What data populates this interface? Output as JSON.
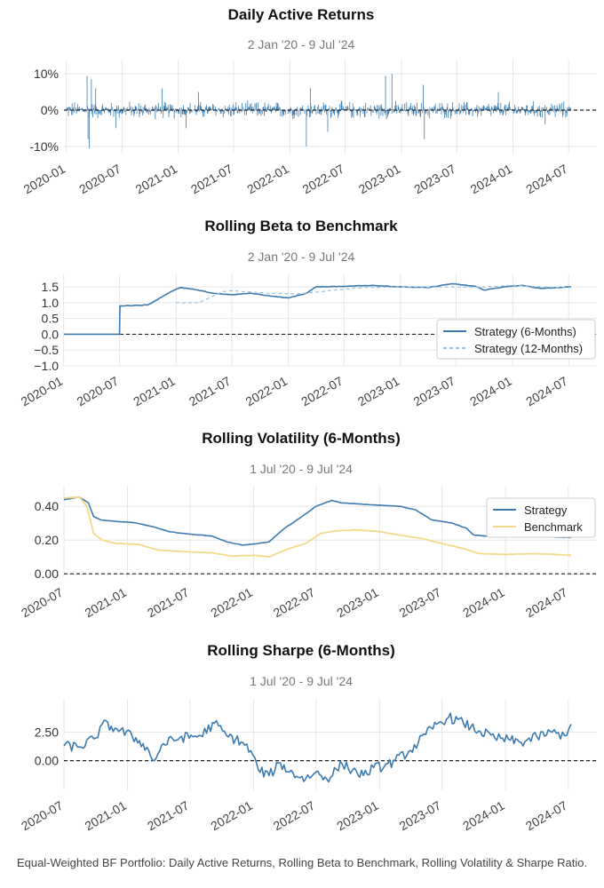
{
  "caption": "Equal-Weighted BF Portfolio: Daily Active Returns, Rolling Beta to Benchmark, Rolling Volatility & Sharpe Ratio.",
  "colors": {
    "strategy": "#3b7bb0",
    "strategy_light": "#9dc0dd",
    "benchmark": "#f2d98a",
    "grid": "#e6e6e6",
    "zero_line": "#222222"
  },
  "chart_data": [
    {
      "type": "bar",
      "title": "Daily Active Returns",
      "subtitle": "2 Jan '20 -  9 Jul '24",
      "x_range": [
        "2020-01-02",
        "2024-07-09"
      ],
      "ylim": [
        -0.12,
        0.12
      ],
      "yticks": [
        {
          "v": 0.1,
          "label": "10%"
        },
        {
          "v": 0.0,
          "label": "0%"
        },
        {
          "v": -0.1,
          "label": "-10%"
        }
      ],
      "xticks": [
        "2020-01",
        "2020-07",
        "2021-01",
        "2021-07",
        "2022-01",
        "2022-07",
        "2023-01",
        "2023-07",
        "2024-01",
        "2024-07"
      ],
      "series": [
        {
          "values_note": "approx. daily active returns, sampled",
          "spikes": [
            {
              "date": "2020-03-09",
              "value": 0.095
            },
            {
              "date": "2020-03-16",
              "value": -0.105
            },
            {
              "date": "2020-03-23",
              "value": 0.085
            },
            {
              "date": "2020-03-12",
              "value": -0.08
            },
            {
              "date": "2020-04-06",
              "value": 0.06
            },
            {
              "date": "2020-06-11",
              "value": -0.05
            },
            {
              "date": "2020-11-09",
              "value": 0.06
            },
            {
              "date": "2021-01-27",
              "value": -0.05
            },
            {
              "date": "2021-03-08",
              "value": 0.05
            },
            {
              "date": "2022-02-24",
              "value": -0.1
            },
            {
              "date": "2022-03-09",
              "value": 0.06
            },
            {
              "date": "2022-05-05",
              "value": -0.06
            },
            {
              "date": "2022-11-10",
              "value": 0.095
            },
            {
              "date": "2022-12-01",
              "value": 0.1
            },
            {
              "date": "2023-03-13",
              "value": 0.07
            },
            {
              "date": "2023-03-17",
              "value": -0.08
            },
            {
              "date": "2023-11-14",
              "value": 0.05
            },
            {
              "date": "2024-04-15",
              "value": -0.04
            }
          ],
          "typical_amplitude": 0.02
        }
      ]
    },
    {
      "type": "line",
      "title": "Rolling Beta to Benchmark",
      "subtitle": "2 Jan '20 -  9 Jul '24",
      "x_range": [
        "2020-01-02",
        "2024-07-09"
      ],
      "ylim": [
        -1.0,
        1.7
      ],
      "yticks": [
        {
          "v": 1.5,
          "label": "1.5"
        },
        {
          "v": 1.0,
          "label": "1.0"
        },
        {
          "v": 0.5,
          "label": "0.5"
        },
        {
          "v": 0.0,
          "label": "0.0"
        },
        {
          "v": -0.5,
          "label": "−0.5"
        },
        {
          "v": -1.0,
          "label": "−1.0"
        }
      ],
      "xticks": [
        "2020-01",
        "2020-07",
        "2021-01",
        "2021-07",
        "2022-01",
        "2022-07",
        "2023-01",
        "2023-07",
        "2024-01",
        "2024-07"
      ],
      "legend": "bottom-right",
      "series": [
        {
          "name": "Strategy (6-Months)",
          "style": "solid",
          "points": [
            [
              "2020-01-02",
              0.0
            ],
            [
              "2020-07-01",
              0.0
            ],
            [
              "2020-07-02",
              0.9
            ],
            [
              "2020-10-01",
              0.93
            ],
            [
              "2020-12-15",
              1.35
            ],
            [
              "2021-01-15",
              1.48
            ],
            [
              "2021-03-01",
              1.42
            ],
            [
              "2021-05-01",
              1.3
            ],
            [
              "2021-07-01",
              1.25
            ],
            [
              "2021-09-01",
              1.3
            ],
            [
              "2021-11-15",
              1.2
            ],
            [
              "2022-01-01",
              1.15
            ],
            [
              "2022-03-01",
              1.3
            ],
            [
              "2022-04-01",
              1.5
            ],
            [
              "2022-07-01",
              1.52
            ],
            [
              "2022-10-01",
              1.55
            ],
            [
              "2023-01-01",
              1.5
            ],
            [
              "2023-04-01",
              1.48
            ],
            [
              "2023-06-15",
              1.6
            ],
            [
              "2023-09-01",
              1.52
            ],
            [
              "2023-10-01",
              1.4
            ],
            [
              "2023-12-01",
              1.5
            ],
            [
              "2024-02-01",
              1.55
            ],
            [
              "2024-04-01",
              1.45
            ],
            [
              "2024-07-09",
              1.5
            ]
          ]
        },
        {
          "name": "Strategy (12-Months)",
          "style": "dashed",
          "points": [
            [
              "2020-12-31",
              1.0
            ],
            [
              "2021-03-15",
              1.0
            ],
            [
              "2021-06-01",
              1.35
            ],
            [
              "2021-07-01",
              1.38
            ],
            [
              "2021-11-01",
              1.3
            ],
            [
              "2022-02-01",
              1.28
            ],
            [
              "2022-06-01",
              1.4
            ],
            [
              "2022-09-01",
              1.48
            ],
            [
              "2023-01-01",
              1.5
            ],
            [
              "2023-06-01",
              1.5
            ],
            [
              "2023-10-01",
              1.5
            ],
            [
              "2024-01-01",
              1.55
            ],
            [
              "2024-04-01",
              1.5
            ],
            [
              "2024-07-09",
              1.48
            ]
          ]
        }
      ]
    },
    {
      "type": "line",
      "title": "Rolling Volatility (6-Months)",
      "subtitle": "1 Jul '20 -  9 Jul '24",
      "x_range": [
        "2020-07-01",
        "2024-07-09"
      ],
      "ylim": [
        -0.02,
        0.48
      ],
      "yticks": [
        {
          "v": 0.4,
          "label": "0.40"
        },
        {
          "v": 0.2,
          "label": "0.20"
        },
        {
          "v": 0.0,
          "label": "0.00"
        }
      ],
      "xticks": [
        "2020-07",
        "2021-01",
        "2021-07",
        "2022-01",
        "2022-07",
        "2023-01",
        "2023-07",
        "2024-01",
        "2024-07"
      ],
      "legend": "top-right",
      "series": [
        {
          "name": "Strategy",
          "color_key": "strategy",
          "points": [
            [
              "2020-07-01",
              0.44
            ],
            [
              "2020-08-15",
              0.455
            ],
            [
              "2020-09-10",
              0.42
            ],
            [
              "2020-09-25",
              0.34
            ],
            [
              "2020-10-15",
              0.32
            ],
            [
              "2020-12-01",
              0.31
            ],
            [
              "2021-01-15",
              0.305
            ],
            [
              "2021-03-15",
              0.28
            ],
            [
              "2021-05-01",
              0.25
            ],
            [
              "2021-07-01",
              0.235
            ],
            [
              "2021-09-01",
              0.225
            ],
            [
              "2021-10-15",
              0.19
            ],
            [
              "2021-12-01",
              0.17
            ],
            [
              "2022-01-15",
              0.18
            ],
            [
              "2022-02-15",
              0.19
            ],
            [
              "2022-04-01",
              0.27
            ],
            [
              "2022-05-15",
              0.33
            ],
            [
              "2022-07-01",
              0.4
            ],
            [
              "2022-08-15",
              0.435
            ],
            [
              "2022-09-15",
              0.42
            ],
            [
              "2022-12-01",
              0.41
            ],
            [
              "2023-03-01",
              0.4
            ],
            [
              "2023-04-15",
              0.38
            ],
            [
              "2023-06-01",
              0.32
            ],
            [
              "2023-08-01",
              0.3
            ],
            [
              "2023-09-10",
              0.27
            ],
            [
              "2023-10-01",
              0.23
            ],
            [
              "2023-12-01",
              0.22
            ],
            [
              "2024-02-01",
              0.225
            ],
            [
              "2024-04-01",
              0.22
            ],
            [
              "2024-07-09",
              0.215
            ]
          ]
        },
        {
          "name": "Benchmark",
          "color_key": "benchmark",
          "points": [
            [
              "2020-07-01",
              0.45
            ],
            [
              "2020-08-15",
              0.455
            ],
            [
              "2020-09-05",
              0.4
            ],
            [
              "2020-09-25",
              0.24
            ],
            [
              "2020-10-20",
              0.2
            ],
            [
              "2020-12-01",
              0.18
            ],
            [
              "2021-02-01",
              0.175
            ],
            [
              "2021-04-01",
              0.14
            ],
            [
              "2021-07-01",
              0.13
            ],
            [
              "2021-09-01",
              0.125
            ],
            [
              "2021-11-01",
              0.105
            ],
            [
              "2022-01-01",
              0.11
            ],
            [
              "2022-02-15",
              0.1
            ],
            [
              "2022-04-01",
              0.14
            ],
            [
              "2022-06-01",
              0.18
            ],
            [
              "2022-07-15",
              0.24
            ],
            [
              "2022-09-01",
              0.255
            ],
            [
              "2022-11-01",
              0.26
            ],
            [
              "2023-01-01",
              0.25
            ],
            [
              "2023-03-15",
              0.225
            ],
            [
              "2023-05-01",
              0.21
            ],
            [
              "2023-07-01",
              0.18
            ],
            [
              "2023-09-01",
              0.15
            ],
            [
              "2023-10-15",
              0.12
            ],
            [
              "2024-01-01",
              0.115
            ],
            [
              "2024-04-01",
              0.12
            ],
            [
              "2024-07-09",
              0.11
            ]
          ]
        }
      ]
    },
    {
      "type": "line",
      "title": "Rolling Sharpe (6-Months)",
      "subtitle": "1 Jul '20 -  9 Jul '24",
      "x_range": [
        "2020-07-01",
        "2024-07-09"
      ],
      "ylim": [
        -2.6,
        4.8
      ],
      "yticks": [
        {
          "v": 2.5,
          "label": "2.50"
        },
        {
          "v": 0.0,
          "label": "0.00"
        }
      ],
      "xticks": [
        "2020-07",
        "2021-01",
        "2021-07",
        "2022-01",
        "2022-07",
        "2023-01",
        "2023-07",
        "2024-01",
        "2024-07"
      ],
      "series": [
        {
          "name": "",
          "color_key": "strategy",
          "points": [
            [
              "2020-07-01",
              1.3
            ],
            [
              "2020-08-15",
              1.2
            ],
            [
              "2020-10-01",
              2.0
            ],
            [
              "2020-10-20",
              3.2
            ],
            [
              "2020-12-01",
              2.8
            ],
            [
              "2021-01-15",
              2.1
            ],
            [
              "2021-02-15",
              1.5
            ],
            [
              "2021-03-20",
              0.0
            ],
            [
              "2021-04-15",
              1.5
            ],
            [
              "2021-06-01",
              2.0
            ],
            [
              "2021-08-01",
              2.2
            ],
            [
              "2021-09-10",
              3.3
            ],
            [
              "2021-10-15",
              2.2
            ],
            [
              "2021-12-01",
              1.6
            ],
            [
              "2021-12-30",
              0.5
            ],
            [
              "2022-01-15",
              -0.8
            ],
            [
              "2022-02-15",
              -1.3
            ],
            [
              "2022-03-20",
              -0.2
            ],
            [
              "2022-04-15",
              -1.0
            ],
            [
              "2022-06-01",
              -1.6
            ],
            [
              "2022-07-01",
              -1.0
            ],
            [
              "2022-08-01",
              -1.6
            ],
            [
              "2022-09-15",
              -0.3
            ],
            [
              "2022-10-15",
              -0.8
            ],
            [
              "2022-11-15",
              -1.3
            ],
            [
              "2022-12-15",
              -0.6
            ],
            [
              "2023-01-15",
              -0.5
            ],
            [
              "2023-02-15",
              0.0
            ],
            [
              "2023-04-01",
              0.9
            ],
            [
              "2023-05-15",
              2.3
            ],
            [
              "2023-06-15",
              3.2
            ],
            [
              "2023-07-20",
              3.8
            ],
            [
              "2023-09-01",
              3.3
            ],
            [
              "2023-10-15",
              2.6
            ],
            [
              "2023-12-01",
              2.0
            ],
            [
              "2024-01-15",
              1.8
            ],
            [
              "2024-02-15",
              1.6
            ],
            [
              "2024-04-01",
              2.1
            ],
            [
              "2024-05-15",
              2.5
            ],
            [
              "2024-06-20",
              2.2
            ],
            [
              "2024-07-09",
              3.2
            ]
          ]
        }
      ]
    }
  ]
}
